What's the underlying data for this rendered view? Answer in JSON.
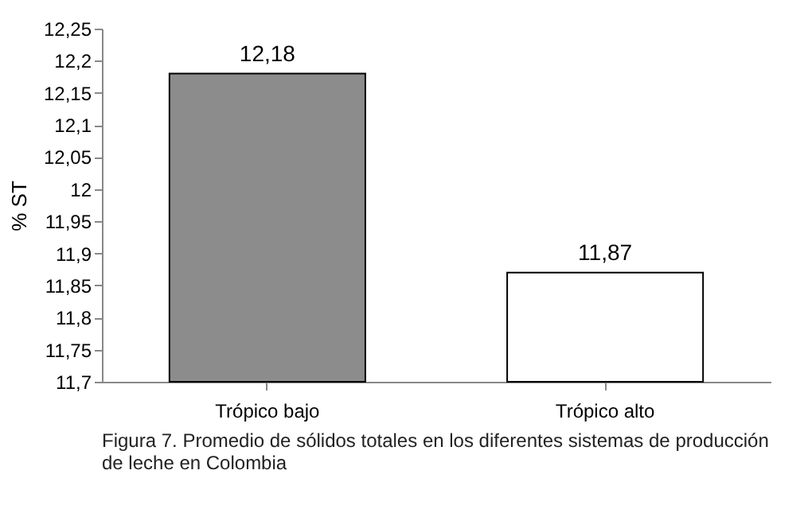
{
  "chart_data": {
    "type": "bar",
    "ylabel": "% ST",
    "categories": [
      "Trópico bajo",
      "Trópico alto"
    ],
    "values": [
      12.18,
      11.87
    ],
    "colors": [
      "#8c8c8c",
      "#ffffff"
    ],
    "value_labels": [
      "12,18",
      "11,87"
    ],
    "ylim": [
      11.7,
      12.25
    ],
    "yticks": [
      {
        "value": 11.7,
        "label": "11,7"
      },
      {
        "value": 11.75,
        "label": "11,75"
      },
      {
        "value": 11.8,
        "label": "11,8"
      },
      {
        "value": 11.85,
        "label": "11,85"
      },
      {
        "value": 11.9,
        "label": "11,9"
      },
      {
        "value": 11.95,
        "label": "11,95"
      },
      {
        "value": 12.0,
        "label": "12"
      },
      {
        "value": 12.05,
        "label": "12,05"
      },
      {
        "value": 12.1,
        "label": "12,1"
      },
      {
        "value": 12.15,
        "label": "12,15"
      },
      {
        "value": 12.2,
        "label": "12,2"
      },
      {
        "value": 12.25,
        "label": "12,25"
      }
    ],
    "grid": false,
    "annotations": [
      "Figura 7. Promedio de sólidos totales en los diferentes sistemas de producción de leche en Colombia"
    ]
  }
}
